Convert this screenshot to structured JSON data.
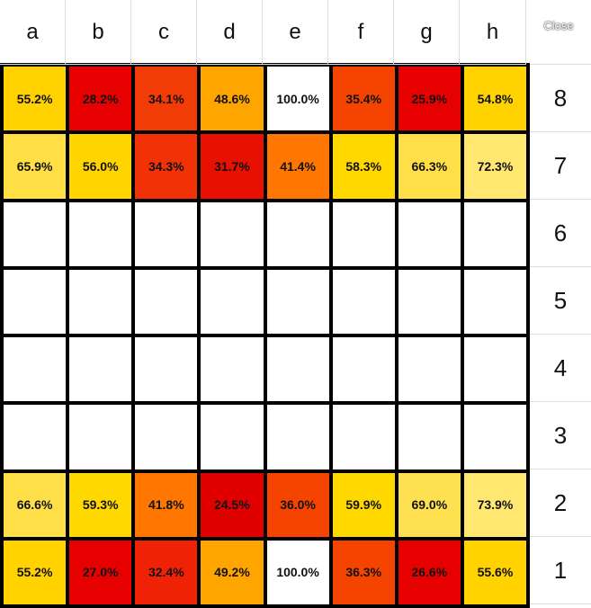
{
  "header": {
    "files": [
      "a",
      "b",
      "c",
      "d",
      "e",
      "f",
      "g",
      "h"
    ],
    "close": "Close"
  },
  "board": {
    "rows": [
      {
        "rank": "8",
        "cells": [
          "55.2%",
          "28.2%",
          "34.1%",
          "48.6%",
          "100.0%",
          "35.4%",
          "25.9%",
          "54.8%"
        ],
        "colors": [
          "#ffd200",
          "#e60000",
          "#f23c08",
          "#ffa500",
          "#ffffff",
          "#f54400",
          "#e60000",
          "#ffd200"
        ]
      },
      {
        "rank": "7",
        "cells": [
          "65.9%",
          "56.0%",
          "34.3%",
          "31.7%",
          "41.4%",
          "58.3%",
          "66.3%",
          "72.3%"
        ],
        "colors": [
          "#ffdf44",
          "#ffd500",
          "#f23206",
          "#e81000",
          "#ff7700",
          "#ffd800",
          "#ffdf48",
          "#ffe770"
        ]
      },
      {
        "rank": "6",
        "cells": [
          null,
          null,
          null,
          null,
          null,
          null,
          null,
          null
        ],
        "colors": null
      },
      {
        "rank": "5",
        "cells": [
          null,
          null,
          null,
          null,
          null,
          null,
          null,
          null
        ],
        "colors": null
      },
      {
        "rank": "4",
        "cells": [
          null,
          null,
          null,
          null,
          null,
          null,
          null,
          null
        ],
        "colors": null
      },
      {
        "rank": "3",
        "cells": [
          null,
          null,
          null,
          null,
          null,
          null,
          null,
          null
        ],
        "colors": null
      },
      {
        "rank": "2",
        "cells": [
          "66.6%",
          "59.3%",
          "41.8%",
          "24.5%",
          "36.0%",
          "59.9%",
          "69.0%",
          "73.9%"
        ],
        "colors": [
          "#ffdf48",
          "#ffd800",
          "#ff7700",
          "#e00000",
          "#f54400",
          "#ffd800",
          "#ffe050",
          "#ffe770"
        ]
      },
      {
        "rank": "1",
        "cells": [
          "55.2%",
          "27.0%",
          "32.4%",
          "49.2%",
          "100.0%",
          "36.3%",
          "26.6%",
          "55.6%"
        ],
        "colors": [
          "#ffd200",
          "#e60000",
          "#f02206",
          "#ffa500",
          "#ffffff",
          "#f54400",
          "#e60000",
          "#ffd200"
        ]
      }
    ]
  }
}
